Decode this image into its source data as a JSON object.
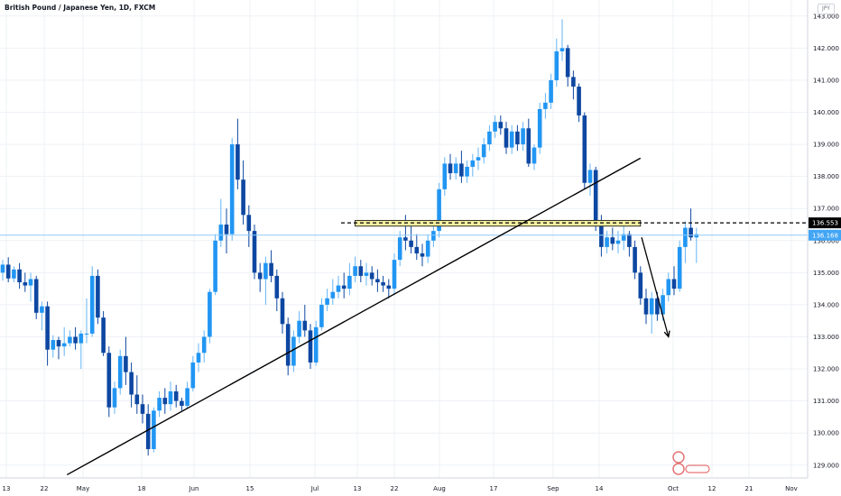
{
  "header": {
    "title": "British Pound / Japanese Yen, 1D, FXCM",
    "currency_badge": "JPY"
  },
  "chart_data": {
    "type": "candlestick",
    "title": "British Pound / Japanese Yen, 1D, FXCM",
    "ylim": [
      128.6,
      143.5
    ],
    "y_ticks": [
      129,
      130,
      131,
      132,
      133,
      134,
      135,
      136,
      137,
      138,
      139,
      140,
      141,
      142,
      143
    ],
    "x_ticks": [
      "13",
      "22",
      "May",
      "18",
      "Jun",
      "15",
      "Jul",
      "13",
      "22",
      "Aug",
      "17",
      "Sep",
      "14",
      "Oct",
      "12",
      "21",
      "Nov"
    ],
    "grid": true,
    "colors": {
      "up": "#2196f3",
      "down": "#0d47a1",
      "wick_up": "#64b5f6",
      "wick_down": "#0d47a1"
    },
    "markers": {
      "dashed_level": 136.553,
      "current_price": 136.168,
      "dashed_level_label": "136.553",
      "current_price_label": "136.168"
    },
    "candles": [
      {
        "o": 135.0,
        "h": 135.4,
        "l": 134.75,
        "c": 135.25
      },
      {
        "o": 135.25,
        "h": 135.48,
        "l": 134.7,
        "c": 134.82
      },
      {
        "o": 134.82,
        "h": 135.2,
        "l": 134.7,
        "c": 135.1
      },
      {
        "o": 135.1,
        "h": 135.3,
        "l": 134.5,
        "c": 134.7
      },
      {
        "o": 134.7,
        "h": 135.0,
        "l": 134.4,
        "c": 134.6
      },
      {
        "o": 134.6,
        "h": 135.0,
        "l": 134.1,
        "c": 134.8
      },
      {
        "o": 134.8,
        "h": 134.9,
        "l": 133.55,
        "c": 133.75
      },
      {
        "o": 133.75,
        "h": 134.1,
        "l": 133.2,
        "c": 133.95
      },
      {
        "o": 133.95,
        "h": 134.1,
        "l": 132.1,
        "c": 132.6
      },
      {
        "o": 132.6,
        "h": 133.05,
        "l": 132.35,
        "c": 132.9
      },
      {
        "o": 132.9,
        "h": 133.0,
        "l": 132.3,
        "c": 132.7
      },
      {
        "o": 132.7,
        "h": 133.3,
        "l": 132.4,
        "c": 132.8
      },
      {
        "o": 132.8,
        "h": 133.2,
        "l": 132.7,
        "c": 133.0
      },
      {
        "o": 133.0,
        "h": 133.3,
        "l": 132.6,
        "c": 132.8
      },
      {
        "o": 132.8,
        "h": 133.2,
        "l": 132.0,
        "c": 133.1
      },
      {
        "o": 133.1,
        "h": 134.2,
        "l": 132.8,
        "c": 133.1
      },
      {
        "o": 133.1,
        "h": 135.2,
        "l": 133.0,
        "c": 134.9
      },
      {
        "o": 134.9,
        "h": 135.1,
        "l": 133.4,
        "c": 133.6
      },
      {
        "o": 133.6,
        "h": 133.8,
        "l": 132.4,
        "c": 132.5
      },
      {
        "o": 132.5,
        "h": 132.7,
        "l": 130.5,
        "c": 130.8
      },
      {
        "o": 130.8,
        "h": 131.6,
        "l": 130.6,
        "c": 131.4
      },
      {
        "o": 131.4,
        "h": 132.6,
        "l": 131.2,
        "c": 132.4
      },
      {
        "o": 132.4,
        "h": 133.0,
        "l": 131.5,
        "c": 131.9
      },
      {
        "o": 131.9,
        "h": 132.2,
        "l": 130.8,
        "c": 131.2
      },
      {
        "o": 131.2,
        "h": 131.8,
        "l": 130.6,
        "c": 130.9
      },
      {
        "o": 130.9,
        "h": 131.2,
        "l": 130.3,
        "c": 130.6
      },
      {
        "o": 130.6,
        "h": 130.9,
        "l": 129.3,
        "c": 129.5
      },
      {
        "o": 129.5,
        "h": 130.8,
        "l": 129.4,
        "c": 130.7
      },
      {
        "o": 130.7,
        "h": 131.3,
        "l": 130.5,
        "c": 131.1
      },
      {
        "o": 131.1,
        "h": 131.4,
        "l": 130.6,
        "c": 130.9
      },
      {
        "o": 130.9,
        "h": 131.6,
        "l": 130.7,
        "c": 131.3
      },
      {
        "o": 131.3,
        "h": 131.5,
        "l": 130.8,
        "c": 131.0
      },
      {
        "o": 131.0,
        "h": 131.1,
        "l": 130.7,
        "c": 130.85
      },
      {
        "o": 130.85,
        "h": 131.6,
        "l": 130.75,
        "c": 131.4
      },
      {
        "o": 131.4,
        "h": 132.4,
        "l": 131.3,
        "c": 132.2
      },
      {
        "o": 132.2,
        "h": 132.8,
        "l": 131.9,
        "c": 132.5
      },
      {
        "o": 132.5,
        "h": 133.2,
        "l": 132.2,
        "c": 133.0
      },
      {
        "o": 133.0,
        "h": 134.5,
        "l": 132.8,
        "c": 134.4
      },
      {
        "o": 134.4,
        "h": 136.2,
        "l": 134.3,
        "c": 136.0
      },
      {
        "o": 136.0,
        "h": 137.3,
        "l": 135.8,
        "c": 136.5
      },
      {
        "o": 136.5,
        "h": 137.0,
        "l": 135.6,
        "c": 136.2
      },
      {
        "o": 136.2,
        "h": 139.2,
        "l": 136.0,
        "c": 139.0
      },
      {
        "o": 139.0,
        "h": 139.8,
        "l": 137.6,
        "c": 137.9
      },
      {
        "o": 137.9,
        "h": 138.5,
        "l": 136.5,
        "c": 136.8
      },
      {
        "o": 136.8,
        "h": 137.1,
        "l": 135.8,
        "c": 136.3
      },
      {
        "o": 136.3,
        "h": 136.5,
        "l": 134.8,
        "c": 135.0
      },
      {
        "o": 135.0,
        "h": 135.3,
        "l": 134.4,
        "c": 134.8
      },
      {
        "o": 134.8,
        "h": 135.5,
        "l": 134.0,
        "c": 135.3
      },
      {
        "o": 135.3,
        "h": 135.7,
        "l": 134.7,
        "c": 134.9
      },
      {
        "o": 134.9,
        "h": 135.1,
        "l": 133.8,
        "c": 134.2
      },
      {
        "o": 134.2,
        "h": 134.4,
        "l": 133.1,
        "c": 133.4
      },
      {
        "o": 133.4,
        "h": 133.6,
        "l": 131.8,
        "c": 132.1
      },
      {
        "o": 132.1,
        "h": 133.2,
        "l": 131.9,
        "c": 133.0
      },
      {
        "o": 133.0,
        "h": 133.8,
        "l": 132.8,
        "c": 133.5
      },
      {
        "o": 133.5,
        "h": 134.0,
        "l": 133.0,
        "c": 133.2
      },
      {
        "o": 133.2,
        "h": 133.4,
        "l": 132.0,
        "c": 132.2
      },
      {
        "o": 132.2,
        "h": 133.5,
        "l": 132.1,
        "c": 133.3
      },
      {
        "o": 133.3,
        "h": 134.2,
        "l": 133.2,
        "c": 134.0
      },
      {
        "o": 134.0,
        "h": 134.5,
        "l": 133.8,
        "c": 134.2
      },
      {
        "o": 134.2,
        "h": 134.8,
        "l": 134.0,
        "c": 134.4
      },
      {
        "o": 134.4,
        "h": 134.9,
        "l": 134.2,
        "c": 134.6
      },
      {
        "o": 134.6,
        "h": 135.0,
        "l": 134.2,
        "c": 134.5
      },
      {
        "o": 134.5,
        "h": 135.3,
        "l": 134.3,
        "c": 134.9
      },
      {
        "o": 134.9,
        "h": 135.5,
        "l": 134.7,
        "c": 135.2
      },
      {
        "o": 135.2,
        "h": 135.4,
        "l": 134.7,
        "c": 134.9
      },
      {
        "o": 134.9,
        "h": 135.3,
        "l": 134.6,
        "c": 135.0
      },
      {
        "o": 135.0,
        "h": 135.2,
        "l": 134.6,
        "c": 134.8
      },
      {
        "o": 134.8,
        "h": 135.1,
        "l": 134.4,
        "c": 134.7
      },
      {
        "o": 134.7,
        "h": 134.9,
        "l": 134.4,
        "c": 134.6
      },
      {
        "o": 134.6,
        "h": 134.8,
        "l": 134.2,
        "c": 134.5
      },
      {
        "o": 134.5,
        "h": 135.6,
        "l": 134.3,
        "c": 135.4
      },
      {
        "o": 135.4,
        "h": 136.3,
        "l": 135.2,
        "c": 136.1
      },
      {
        "o": 136.1,
        "h": 136.8,
        "l": 135.7,
        "c": 136.0
      },
      {
        "o": 136.0,
        "h": 136.6,
        "l": 135.6,
        "c": 135.8
      },
      {
        "o": 135.8,
        "h": 136.2,
        "l": 135.4,
        "c": 135.6
      },
      {
        "o": 135.6,
        "h": 135.9,
        "l": 135.2,
        "c": 135.5
      },
      {
        "o": 135.5,
        "h": 136.2,
        "l": 135.3,
        "c": 136.0
      },
      {
        "o": 136.0,
        "h": 136.5,
        "l": 135.8,
        "c": 136.3
      },
      {
        "o": 136.3,
        "h": 137.8,
        "l": 136.1,
        "c": 137.6
      },
      {
        "o": 137.6,
        "h": 138.6,
        "l": 137.4,
        "c": 138.4
      },
      {
        "o": 138.4,
        "h": 138.7,
        "l": 137.9,
        "c": 138.1
      },
      {
        "o": 138.1,
        "h": 138.6,
        "l": 137.9,
        "c": 138.4
      },
      {
        "o": 138.4,
        "h": 138.8,
        "l": 137.8,
        "c": 138.0
      },
      {
        "o": 138.0,
        "h": 138.5,
        "l": 137.8,
        "c": 138.3
      },
      {
        "o": 138.3,
        "h": 138.7,
        "l": 138.0,
        "c": 138.5
      },
      {
        "o": 138.5,
        "h": 138.9,
        "l": 138.2,
        "c": 138.6
      },
      {
        "o": 138.6,
        "h": 139.2,
        "l": 138.4,
        "c": 139.0
      },
      {
        "o": 139.0,
        "h": 139.6,
        "l": 138.8,
        "c": 139.4
      },
      {
        "o": 139.4,
        "h": 139.9,
        "l": 139.2,
        "c": 139.7
      },
      {
        "o": 139.7,
        "h": 139.9,
        "l": 139.3,
        "c": 139.5
      },
      {
        "o": 139.5,
        "h": 139.7,
        "l": 138.7,
        "c": 138.9
      },
      {
        "o": 138.9,
        "h": 139.6,
        "l": 138.7,
        "c": 139.4
      },
      {
        "o": 139.4,
        "h": 139.6,
        "l": 138.8,
        "c": 139.0
      },
      {
        "o": 139.0,
        "h": 139.7,
        "l": 138.8,
        "c": 139.5
      },
      {
        "o": 139.5,
        "h": 139.8,
        "l": 138.3,
        "c": 138.4
      },
      {
        "o": 138.4,
        "h": 139.0,
        "l": 138.2,
        "c": 138.9
      },
      {
        "o": 138.9,
        "h": 140.3,
        "l": 138.7,
        "c": 140.1
      },
      {
        "o": 140.1,
        "h": 140.6,
        "l": 139.8,
        "c": 140.3
      },
      {
        "o": 140.3,
        "h": 141.2,
        "l": 140.1,
        "c": 141.0
      },
      {
        "o": 141.0,
        "h": 142.3,
        "l": 140.8,
        "c": 141.9
      },
      {
        "o": 141.9,
        "h": 142.9,
        "l": 141.6,
        "c": 142.0
      },
      {
        "o": 142.0,
        "h": 142.1,
        "l": 140.8,
        "c": 141.1
      },
      {
        "o": 141.1,
        "h": 141.3,
        "l": 140.4,
        "c": 140.8
      },
      {
        "o": 140.8,
        "h": 140.9,
        "l": 139.7,
        "c": 139.9
      },
      {
        "o": 139.9,
        "h": 140.0,
        "l": 137.6,
        "c": 137.8
      },
      {
        "o": 137.8,
        "h": 138.4,
        "l": 137.4,
        "c": 138.2
      },
      {
        "o": 138.2,
        "h": 138.3,
        "l": 136.3,
        "c": 136.5
      },
      {
        "o": 136.5,
        "h": 136.8,
        "l": 135.5,
        "c": 135.8
      },
      {
        "o": 135.8,
        "h": 136.3,
        "l": 135.6,
        "c": 136.1
      },
      {
        "o": 136.1,
        "h": 136.4,
        "l": 135.7,
        "c": 135.9
      },
      {
        "o": 135.9,
        "h": 136.3,
        "l": 135.6,
        "c": 136.0
      },
      {
        "o": 136.0,
        "h": 136.6,
        "l": 135.7,
        "c": 136.2
      },
      {
        "o": 136.2,
        "h": 136.3,
        "l": 135.5,
        "c": 135.8
      },
      {
        "o": 135.8,
        "h": 136.0,
        "l": 134.8,
        "c": 135.0
      },
      {
        "o": 135.0,
        "h": 135.2,
        "l": 134.0,
        "c": 134.2
      },
      {
        "o": 134.2,
        "h": 134.5,
        "l": 133.4,
        "c": 133.7
      },
      {
        "o": 133.7,
        "h": 134.4,
        "l": 133.1,
        "c": 134.2
      },
      {
        "o": 134.2,
        "h": 134.4,
        "l": 133.5,
        "c": 133.7
      },
      {
        "o": 133.7,
        "h": 134.5,
        "l": 133.5,
        "c": 134.3
      },
      {
        "o": 134.3,
        "h": 135.0,
        "l": 134.1,
        "c": 134.8
      },
      {
        "o": 134.8,
        "h": 135.2,
        "l": 134.3,
        "c": 134.5
      },
      {
        "o": 134.5,
        "h": 136.0,
        "l": 134.4,
        "c": 135.8
      },
      {
        "o": 135.8,
        "h": 136.6,
        "l": 135.3,
        "c": 136.4
      },
      {
        "o": 136.4,
        "h": 137.0,
        "l": 136.0,
        "c": 136.1
      },
      {
        "o": 136.1,
        "h": 136.4,
        "l": 135.3,
        "c": 136.2
      }
    ]
  },
  "drawings": {
    "trendline": {
      "from": {
        "bar": 11.5,
        "price": 128.7
      },
      "to": {
        "bar": 114.0,
        "price": 138.57
      }
    },
    "horizontal_band": {
      "from_bar": 63.0,
      "to_bar": 114.0,
      "price_low": 136.45,
      "price_high": 136.63
    },
    "dashed_line_price": 136.553,
    "arrow": {
      "from": {
        "bar": 114.2,
        "price": 136.1
      },
      "to": {
        "bar": 119.0,
        "price": 133.0
      }
    }
  }
}
